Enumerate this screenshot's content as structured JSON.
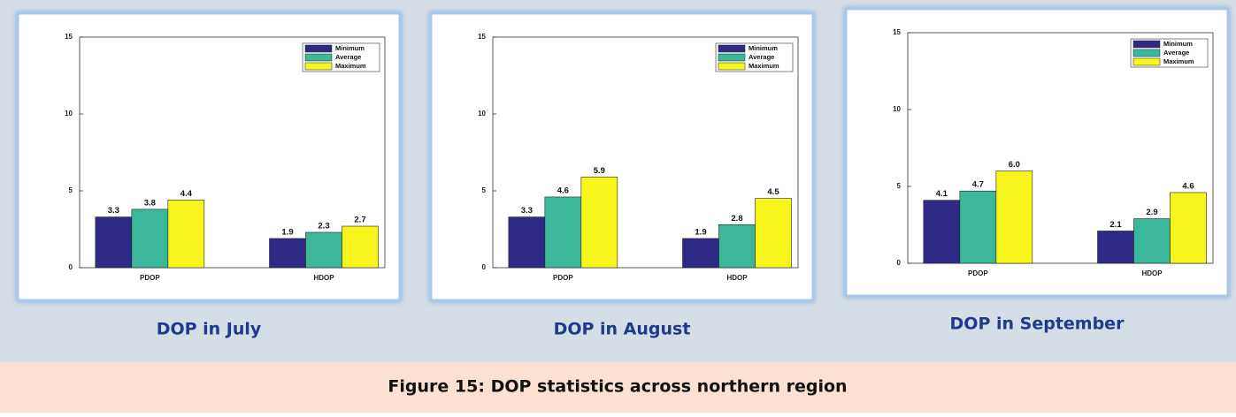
{
  "figure_caption": "Figure 15: DOP statistics across northern region",
  "chart_data": [
    {
      "type": "bar",
      "caption": "DOP in July",
      "categories": [
        "PDOP",
        "HDOP"
      ],
      "series": [
        {
          "name": "Minimum",
          "color": "#2f2a86",
          "values": [
            3.3,
            1.9
          ],
          "value_labels": [
            "3.3",
            "1.9"
          ]
        },
        {
          "name": "Average",
          "color": "#3bb89b",
          "values": [
            3.8,
            2.3
          ],
          "value_labels": [
            "3.8",
            "2.3"
          ]
        },
        {
          "name": "Maximum",
          "color": "#f7f51c",
          "values": [
            4.4,
            2.7
          ],
          "value_labels": [
            "4.4",
            "2.7"
          ]
        }
      ],
      "ylim": [
        0,
        15
      ],
      "yticks": [
        0,
        5,
        10,
        15
      ],
      "legend": "upper right"
    },
    {
      "type": "bar",
      "caption": "DOP in August",
      "categories": [
        "PDOP",
        "HDOP"
      ],
      "series": [
        {
          "name": "Minimum",
          "color": "#2f2a86",
          "values": [
            3.3,
            1.9
          ],
          "value_labels": [
            "3.3",
            "1.9"
          ]
        },
        {
          "name": "Average",
          "color": "#3bb89b",
          "values": [
            4.6,
            2.8
          ],
          "value_labels": [
            "4.6",
            "2.8"
          ]
        },
        {
          "name": "Maximum",
          "color": "#f7f51c",
          "values": [
            5.9,
            4.5
          ],
          "value_labels": [
            "5.9",
            "4.5"
          ]
        }
      ],
      "ylim": [
        0,
        15
      ],
      "yticks": [
        0,
        5,
        10,
        15
      ],
      "legend": "upper right"
    },
    {
      "type": "bar",
      "caption": "DOP in September",
      "categories": [
        "PDOP",
        "HDOP"
      ],
      "series": [
        {
          "name": "Minimum",
          "color": "#2f2a86",
          "values": [
            4.1,
            2.1
          ],
          "value_labels": [
            "4.1",
            "2.1"
          ]
        },
        {
          "name": "Average",
          "color": "#3bb89b",
          "values": [
            4.7,
            2.9
          ],
          "value_labels": [
            "4.7",
            "2.9"
          ]
        },
        {
          "name": "Maximum",
          "color": "#f7f51c",
          "values": [
            6.0,
            4.6
          ],
          "value_labels": [
            "6.0",
            "4.6"
          ]
        }
      ],
      "ylim": [
        0,
        15
      ],
      "yticks": [
        0,
        5,
        10,
        15
      ],
      "legend": "upper right"
    }
  ]
}
